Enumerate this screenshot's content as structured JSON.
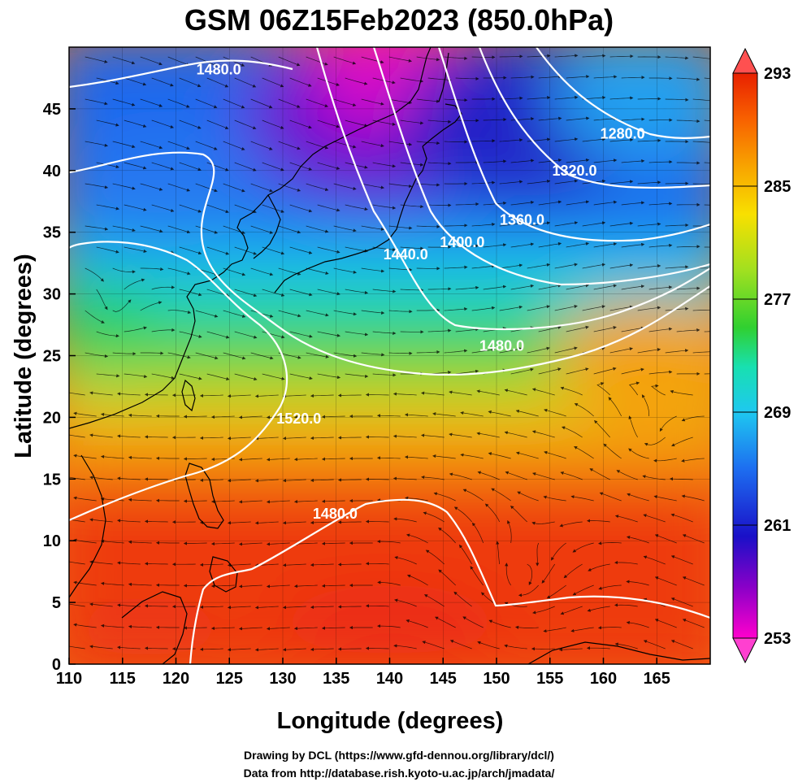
{
  "title": "GSM 06Z15Feb2023 (850.0hPa)",
  "x_axis": {
    "label": "Longitude (degrees)",
    "range": [
      110,
      170
    ],
    "ticks": [
      "110",
      "115",
      "120",
      "125",
      "130",
      "135",
      "140",
      "145",
      "150",
      "155",
      "160",
      "165"
    ]
  },
  "y_axis": {
    "label": "Latitude  (degrees)",
    "range": [
      0,
      50
    ],
    "ticks": [
      "0",
      "5",
      "10",
      "15",
      "20",
      "25",
      "30",
      "35",
      "40",
      "45"
    ]
  },
  "colorbar": {
    "min": 253,
    "max": 293,
    "labels": [
      "293",
      "285",
      "277",
      "269",
      "261",
      "253"
    ],
    "colors": [
      "#ff00cc",
      "#8a00c8",
      "#1a10c8",
      "#1d6ef0",
      "#1ec8f0",
      "#18e0b0",
      "#30d030",
      "#a0e020",
      "#f8e000",
      "#f8a000",
      "#f86000",
      "#e82000"
    ]
  },
  "contours": [
    {
      "label": "1480.0",
      "lon": 124,
      "lat": 47.8
    },
    {
      "label": "1280.0",
      "lon": 161.8,
      "lat": 42.6
    },
    {
      "label": "1320.0",
      "lon": 157.3,
      "lat": 39.6
    },
    {
      "label": "1360.0",
      "lon": 152.4,
      "lat": 35.6
    },
    {
      "label": "1400.0",
      "lon": 146.8,
      "lat": 33.8
    },
    {
      "label": "1440.0",
      "lon": 141.5,
      "lat": 32.8
    },
    {
      "label": "1480.0",
      "lon": 150.5,
      "lat": 25.4
    },
    {
      "label": "1520.0",
      "lon": 131.5,
      "lat": 19.5
    },
    {
      "label": "1480.0",
      "lon": 134.9,
      "lat": 11.8
    }
  ],
  "credits": [
    "Drawing by DCL (https://www.gfd-dennou.org/library/dcl/)",
    "Data from http://database.rish.kyoto-u.ac.jp/arch/jmadata/"
  ]
}
